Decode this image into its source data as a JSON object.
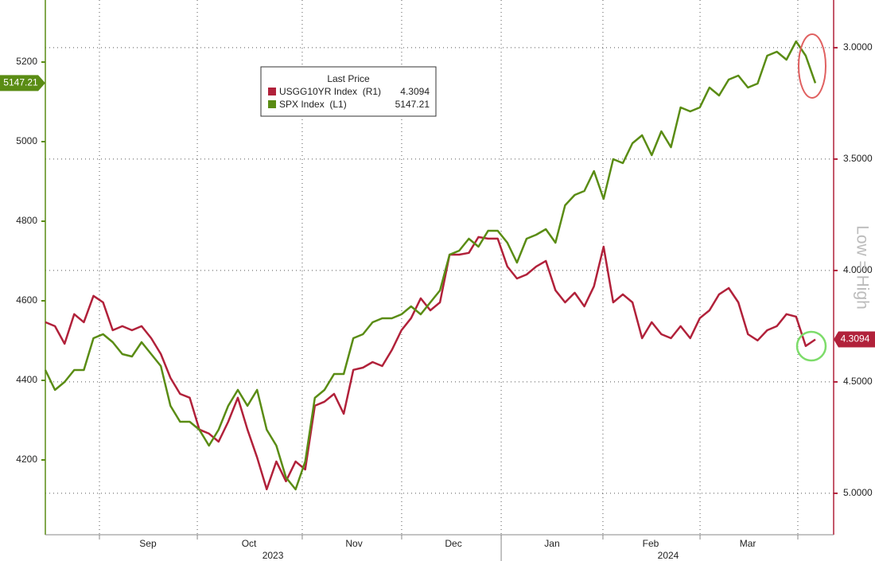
{
  "chart_data": {
    "type": "line",
    "legend_title": "Last Price",
    "axis_note": "Low = High",
    "xlim": [
      0,
      81.9
    ],
    "xticks": [
      5.62,
      15.79,
      26.69,
      37.02,
      47.36,
      57.93,
      68.02,
      78.18
    ],
    "year_break": 47.36,
    "x_labels": [
      {
        "value": 10.66,
        "label": "Sep"
      },
      {
        "value": 21.16,
        "label": "Oct"
      },
      {
        "value": 32.07,
        "label": "Nov"
      },
      {
        "value": 42.4,
        "label": "Dec"
      },
      {
        "value": 52.64,
        "label": "Jan"
      },
      {
        "value": 62.89,
        "label": "Feb"
      },
      {
        "value": 72.98,
        "label": "Mar"
      }
    ],
    "year_labels": [
      {
        "value": 23.64,
        "label": "2023"
      },
      {
        "value": 64.71,
        "label": "2024"
      }
    ],
    "ylim": [
      4012,
      5356
    ],
    "yticks": [
      4200,
      4400,
      4600,
      4800,
      5000,
      5200
    ],
    "y2lim": [
      5.186,
      2.786
    ],
    "y2ticks": [
      {
        "value": 3,
        "label": "3.0000"
      },
      {
        "value": 3.5,
        "label": "3.5000"
      },
      {
        "value": 4,
        "label": "4.0000"
      },
      {
        "value": 4.5,
        "label": "4.5000"
      },
      {
        "value": 5,
        "label": "5.0000"
      }
    ],
    "grid": true,
    "series": [
      {
        "name": "USGG10YR Index  (R1)",
        "color": "#b1213a",
        "axis": "y2",
        "values": [
          4.232,
          4.25,
          4.329,
          4.196,
          4.232,
          4.114,
          4.143,
          4.268,
          4.25,
          4.268,
          4.25,
          4.304,
          4.375,
          4.482,
          4.554,
          4.571,
          4.714,
          4.732,
          4.768,
          4.679,
          4.571,
          4.714,
          4.839,
          4.982,
          4.857,
          4.946,
          4.857,
          4.893,
          4.607,
          4.589,
          4.554,
          4.643,
          4.446,
          4.436,
          4.411,
          4.429,
          4.357,
          4.268,
          4.214,
          4.125,
          4.179,
          4.143,
          3.929,
          3.929,
          3.921,
          3.85,
          3.857,
          3.857,
          3.982,
          4.036,
          4.018,
          3.982,
          3.957,
          4.089,
          4.143,
          4.1,
          4.161,
          4.071,
          3.893,
          4.143,
          4.107,
          4.143,
          4.304,
          4.232,
          4.286,
          4.304,
          4.25,
          4.304,
          4.214,
          4.179,
          4.107,
          4.079,
          4.143,
          4.286,
          4.314,
          4.268,
          4.25,
          4.196,
          4.207,
          4.339,
          4.3094
        ]
      },
      {
        "name": "SPX Index  (L1)",
        "color": "#5a8c14",
        "axis": "y",
        "values": [
          4426,
          4376,
          4396,
          4426,
          4426,
          4506,
          4516,
          4496,
          4466,
          4460,
          4496,
          4466,
          4436,
          4336,
          4296,
          4296,
          4276,
          4236,
          4276,
          4336,
          4376,
          4336,
          4376,
          4276,
          4236,
          4156,
          4126,
          4196,
          4356,
          4376,
          4416,
          4416,
          4506,
          4516,
          4546,
          4556,
          4556,
          4566,
          4586,
          4566,
          4596,
          4626,
          4716,
          4726,
          4756,
          4736,
          4776,
          4776,
          4746,
          4696,
          4756,
          4766,
          4780,
          4746,
          4840,
          4866,
          4876,
          4926,
          4856,
          4956,
          4946,
          4996,
          5016,
          4966,
          5026,
          4986,
          5086,
          5076,
          5086,
          5136,
          5116,
          5156,
          5166,
          5136,
          5146,
          5216,
          5226,
          5206,
          5252,
          5216,
          5147.21
        ]
      }
    ]
  }
}
